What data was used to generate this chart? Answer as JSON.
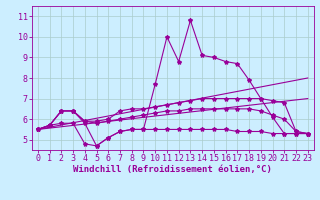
{
  "x": [
    0,
    1,
    2,
    3,
    4,
    5,
    6,
    7,
    8,
    9,
    10,
    11,
    12,
    13,
    14,
    15,
    16,
    17,
    18,
    19,
    20,
    21,
    22,
    23
  ],
  "line1": [
    5.5,
    5.7,
    6.4,
    6.4,
    5.8,
    4.7,
    5.1,
    5.4,
    5.5,
    5.5,
    7.7,
    10.0,
    8.8,
    10.8,
    9.1,
    9.0,
    8.8,
    8.7,
    7.9,
    7.0,
    6.1,
    5.3,
    5.3,
    5.3
  ],
  "line2": [
    5.5,
    5.7,
    6.4,
    6.4,
    5.9,
    5.9,
    6.0,
    6.4,
    6.5,
    6.5,
    6.6,
    6.7,
    6.8,
    6.9,
    7.0,
    7.0,
    7.0,
    7.0,
    7.0,
    7.0,
    6.9,
    6.8,
    5.4,
    5.3
  ],
  "line3": [
    5.5,
    5.7,
    6.4,
    6.4,
    5.9,
    5.8,
    5.9,
    6.0,
    6.1,
    6.2,
    6.3,
    6.4,
    6.4,
    6.5,
    6.5,
    6.5,
    6.5,
    6.5,
    6.5,
    6.4,
    6.2,
    6.0,
    5.4,
    5.3
  ],
  "line4": [
    5.5,
    5.7,
    5.8,
    5.8,
    4.8,
    4.7,
    5.1,
    5.4,
    5.5,
    5.5,
    5.5,
    5.5,
    5.5,
    5.5,
    5.5,
    5.5,
    5.5,
    5.4,
    5.4,
    5.4,
    5.3,
    5.3,
    5.3,
    5.3
  ],
  "trend1_x": [
    0,
    23
  ],
  "trend1_y": [
    5.5,
    8.0
  ],
  "trend2_x": [
    0,
    23
  ],
  "trend2_y": [
    5.5,
    7.0
  ],
  "ylim": [
    4.5,
    11.5
  ],
  "xlim": [
    -0.5,
    23.5
  ],
  "yticks": [
    5,
    6,
    7,
    8,
    9,
    10,
    11
  ],
  "xticks": [
    0,
    1,
    2,
    3,
    4,
    5,
    6,
    7,
    8,
    9,
    10,
    11,
    12,
    13,
    14,
    15,
    16,
    17,
    18,
    19,
    20,
    21,
    22,
    23
  ],
  "xlabel": "Windchill (Refroidissement éolien,°C)",
  "line_color": "#990099",
  "bg_color": "#cceeff",
  "grid_color": "#aacccc",
  "marker": "*",
  "markersize": 3,
  "linewidth": 0.8,
  "xlabel_fontsize": 6.5,
  "tick_fontsize": 6
}
